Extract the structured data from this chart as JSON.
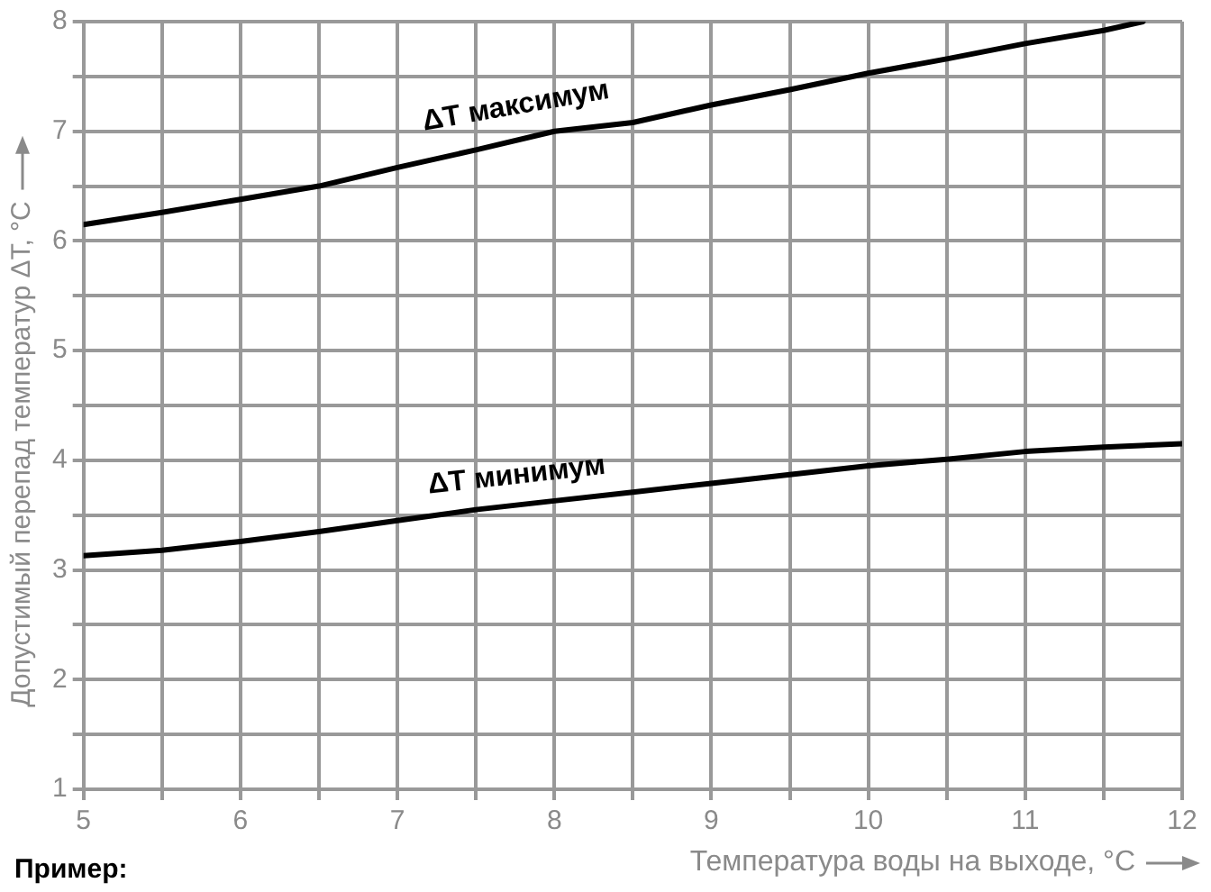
{
  "chart_data": {
    "type": "line",
    "xlabel": "Температура воды на выходе, °C",
    "ylabel": "Допустимый перепад температур ΔT, °C",
    "annotations": [
      "Пример:"
    ],
    "x": [
      5,
      5.5,
      6,
      6.5,
      7,
      7.5,
      8,
      8.5,
      9,
      9.5,
      10,
      10.5,
      11,
      11.5,
      11.75
    ],
    "series": [
      {
        "name": "ΔT максимум",
        "color": "#000000",
        "values": [
          6.15,
          6.26,
          6.38,
          6.5,
          6.67,
          6.83,
          7.0,
          7.08,
          7.24,
          7.38,
          7.53,
          7.66,
          7.8,
          7.92,
          8.0
        ]
      },
      {
        "name": "ΔT минимум",
        "color": "#000000",
        "x": [
          5,
          5.5,
          6,
          6.5,
          7,
          7.5,
          8,
          8.5,
          9,
          9.5,
          10,
          10.5,
          11,
          11.5,
          12
        ],
        "values": [
          3.13,
          3.18,
          3.26,
          3.35,
          3.45,
          3.55,
          3.63,
          3.71,
          3.79,
          3.87,
          3.95,
          4.01,
          4.08,
          4.12,
          4.15
        ]
      }
    ],
    "xlim": [
      5,
      12
    ],
    "ylim": [
      1,
      8
    ],
    "xticks": [
      5,
      {
        "value": 5.5,
        "label": null
      },
      6,
      {
        "value": 6.5,
        "label": null
      },
      7,
      {
        "value": 7.5,
        "label": null
      },
      8,
      {
        "value": 8.5,
        "label": null
      },
      9,
      {
        "value": 9.5,
        "label": null
      },
      10,
      {
        "value": 10.5,
        "label": null
      },
      11,
      {
        "value": 11.5,
        "label": null
      },
      12
    ],
    "yticks": [
      1,
      {
        "value": 1.5,
        "label": null
      },
      2,
      {
        "value": 2.5,
        "label": null
      },
      3,
      {
        "value": 3.5,
        "label": null
      },
      4,
      {
        "value": 4.5,
        "label": null
      },
      5,
      {
        "value": 5.5,
        "label": null
      },
      6,
      {
        "value": 6.5,
        "label": null
      },
      7,
      {
        "value": 7.5,
        "label": null
      },
      8
    ],
    "grid": true,
    "legend": false,
    "marker": "none",
    "line_style": "solid"
  }
}
